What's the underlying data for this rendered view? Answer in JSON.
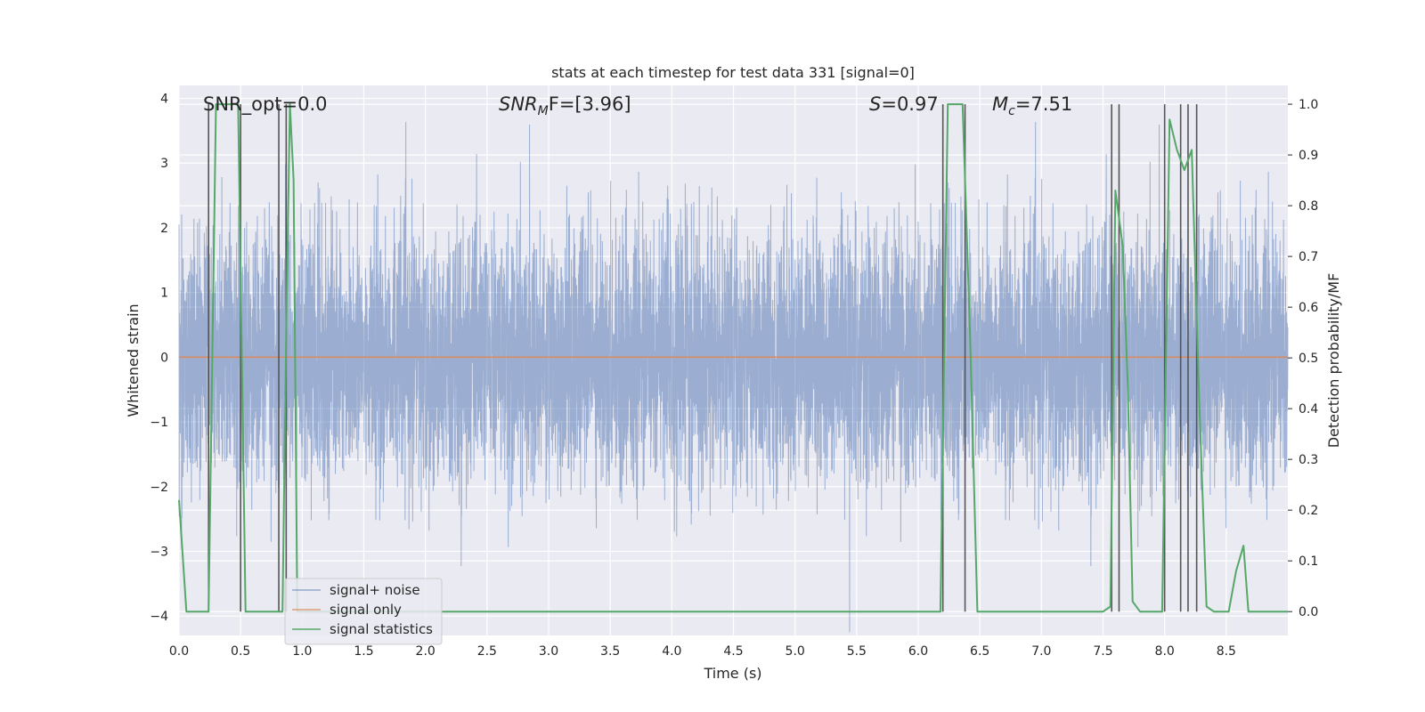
{
  "chart_data": {
    "type": "line",
    "title": "stats at each timestep for test data 331 [signal=0]",
    "xlabel": "Time (s)",
    "ylabel": "Whitened strain",
    "ylabel_right": "Detection probability/MF",
    "xlim": [
      0,
      9.0
    ],
    "ylim": [
      -4.3,
      4.2
    ],
    "ylim_right": [
      -0.047,
      1.037
    ],
    "x_ticks": [
      "0.0",
      "0.5",
      "1.0",
      "1.5",
      "2.0",
      "2.5",
      "3.0",
      "3.5",
      "4.0",
      "4.5",
      "5.0",
      "5.5",
      "6.0",
      "6.5",
      "7.0",
      "7.5",
      "8.0",
      "8.5"
    ],
    "y_ticks": [
      "4",
      "3",
      "2",
      "1",
      "0",
      "−1",
      "−2",
      "−3",
      "−4"
    ],
    "y_ticks_right": [
      "1.0",
      "0.9",
      "0.8",
      "0.7",
      "0.6",
      "0.5",
      "0.4",
      "0.3",
      "0.2",
      "0.1",
      "0.0"
    ],
    "annotations": {
      "snr_opt": "SNR_opt=0.0",
      "snr_mf_sym": "SNR",
      "snr_mf_sub": "M",
      "snr_mf_rest": "F=[3.96]",
      "s_sym": "S",
      "s_val": "=0.97",
      "mc_sym": "M",
      "mc_sub": "c",
      "mc_val": "=7.51"
    },
    "series": [
      {
        "name": "signal+ noise",
        "color": "#4c72b0",
        "axis": "left",
        "kind": "noise",
        "sample_rate": 2048,
        "envelope_std": 0.95
      },
      {
        "name": "signal only",
        "color": "#dd8452",
        "axis": "left",
        "values_constant": 0.0
      },
      {
        "name": "signal statistics",
        "color": "#55a868",
        "axis": "right",
        "x": [
          0.0,
          0.06,
          0.12,
          0.18,
          0.24,
          0.3,
          0.36,
          0.42,
          0.48,
          0.54,
          0.6,
          0.66,
          0.72,
          0.78,
          0.84,
          0.87,
          0.9,
          0.93,
          0.96,
          1.0,
          1.06,
          2.0,
          3.0,
          4.0,
          5.0,
          6.0,
          6.12,
          6.18,
          6.24,
          6.3,
          6.36,
          6.42,
          6.48,
          6.54,
          7.0,
          7.5,
          7.56,
          7.6,
          7.66,
          7.7,
          7.74,
          7.8,
          7.86,
          7.92,
          7.98,
          8.04,
          8.1,
          8.16,
          8.22,
          8.28,
          8.34,
          8.4,
          8.46,
          8.52,
          8.58,
          8.64,
          8.68,
          8.72,
          8.76,
          8.82,
          8.88,
          8.94,
          9.0
        ],
        "y": [
          0.22,
          0.0,
          0.0,
          0.0,
          0.0,
          1.0,
          1.0,
          1.0,
          1.0,
          0.0,
          0.0,
          0.0,
          0.0,
          0.0,
          0.0,
          0.55,
          1.0,
          0.85,
          0.0,
          0.0,
          0.0,
          0.0,
          0.0,
          0.0,
          0.0,
          0.0,
          0.0,
          0.0,
          1.0,
          1.0,
          1.0,
          0.55,
          0.0,
          0.0,
          0.0,
          0.0,
          0.01,
          0.83,
          0.72,
          0.45,
          0.02,
          0.0,
          0.0,
          0.0,
          0.0,
          0.97,
          0.91,
          0.87,
          0.91,
          0.42,
          0.01,
          0.0,
          0.0,
          0.0,
          0.08,
          0.13,
          0.0,
          0.0,
          0.0,
          0.0,
          0.0,
          0.0,
          0.0
        ]
      }
    ],
    "event_markers_x": [
      0.24,
      0.5,
      0.81,
      0.87,
      6.2,
      6.38,
      7.57,
      7.63,
      8.0,
      8.13,
      8.19,
      8.26
    ],
    "legend": {
      "position": "lower-left",
      "entries": [
        "signal+ noise",
        "signal only",
        "signal statistics"
      ]
    },
    "background": "#eaeaf2",
    "grid": true
  }
}
